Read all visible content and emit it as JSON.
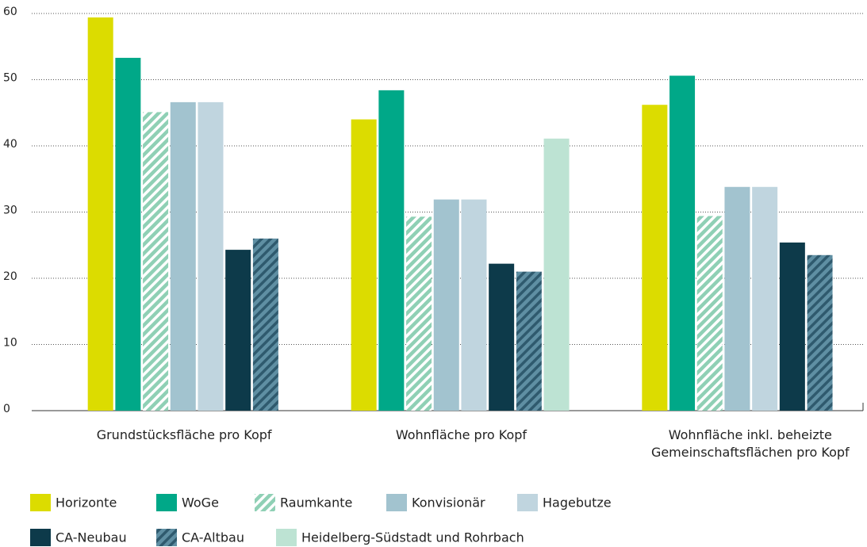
{
  "chart_data": {
    "type": "bar",
    "categories": [
      "Grundstücksfläche pro Kopf",
      "Wohnfläche pro Kopf",
      "Wohnfläche inkl. beheizte\nGemeinschaftsflächen pro Kopf"
    ],
    "series": [
      {
        "name": "Horizonte",
        "color": "#dcdc00",
        "values": [
          59.4,
          44,
          46.2
        ]
      },
      {
        "name": "WoGe",
        "color": "#00a888",
        "values": [
          53.3,
          48.4,
          50.6
        ]
      },
      {
        "name": "Raumkante",
        "color": "#8fd0b5",
        "hatch": true,
        "values": [
          45.1,
          29.3,
          29.4
        ]
      },
      {
        "name": "Konvisionär",
        "color": "#a2c3cf",
        "values": [
          46.6,
          31.9,
          33.8
        ]
      },
      {
        "name": "Hagebutze",
        "color": "#c0d5df",
        "values": [
          46.6,
          31.9,
          33.8
        ]
      },
      {
        "name": "CA-Neubau",
        "color": "#0d3a4a",
        "values": [
          24.3,
          22.2,
          25.4
        ]
      },
      {
        "name": "CA-Altbau",
        "color": "#5f8fa3",
        "hatch": true,
        "values": [
          26,
          21,
          23.5
        ]
      },
      {
        "name": "Heidelberg-Südstadt und Rohrbach",
        "color": "#bde3d3",
        "values": [
          null,
          41.1,
          null
        ]
      }
    ],
    "ylim": [
      0,
      60
    ],
    "yticks": [
      0,
      10,
      20,
      30,
      40,
      50,
      60
    ],
    "grid": true,
    "legend": "bottom"
  }
}
